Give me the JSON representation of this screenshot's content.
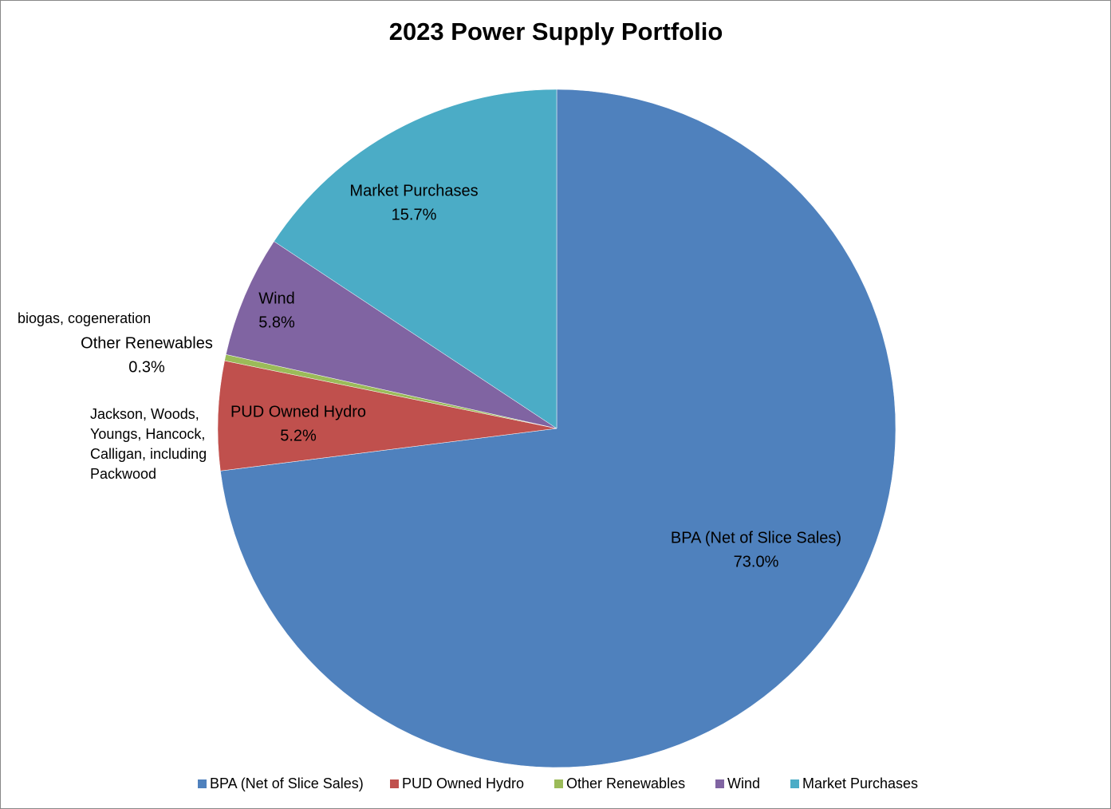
{
  "chart_data": {
    "type": "pie",
    "title": "2023 Power Supply Portfolio",
    "categories": [
      "BPA (Net of Slice Sales)",
      "PUD Owned Hydro",
      "Other Renewables",
      "Wind",
      "Market Purchases"
    ],
    "values": [
      73.0,
      5.2,
      0.3,
      5.8,
      15.7
    ],
    "value_labels": [
      "73.0%",
      "5.2%",
      "0.3%",
      "5.8%",
      "15.7%"
    ],
    "colors": [
      "#4f81bd",
      "#c0504d",
      "#9bbb59",
      "#8064a2",
      "#4bacc6"
    ],
    "annotations": [
      [
        "biogas, cogeneration"
      ],
      [
        "Jackson, Woods,",
        "Youngs, Hancock,",
        "Calligan, including",
        "Packwood"
      ]
    ],
    "legend": "bottom"
  }
}
